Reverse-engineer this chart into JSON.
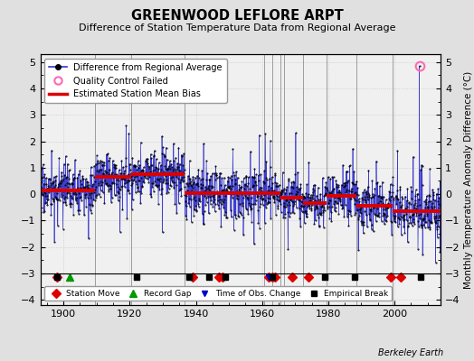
{
  "title": "GREENWOOD LEFLORE ARPT",
  "subtitle": "Difference of Station Temperature Data from Regional Average",
  "ylabel": "Monthly Temperature Anomaly Difference (°C)",
  "xlim": [
    1893,
    2014
  ],
  "ylim": [
    -4.2,
    5.3
  ],
  "yticks": [
    -4,
    -3,
    -2,
    -1,
    0,
    1,
    2,
    3,
    4,
    5
  ],
  "xticks": [
    1900,
    1920,
    1940,
    1960,
    1980,
    2000
  ],
  "background_color": "#e0e0e0",
  "plot_bg_color": "#f0f0f0",
  "line_color": "#3333cc",
  "bias_color": "#dd0000",
  "qc_color": "#ff69b4",
  "grid_color": "#bbbbbb",
  "bias_segments": [
    {
      "x": [
        1893,
        1909.5
      ],
      "y": [
        0.15,
        0.15
      ]
    },
    {
      "x": [
        1909.5,
        1920.5
      ],
      "y": [
        0.65,
        0.65
      ]
    },
    {
      "x": [
        1920.5,
        1936.5
      ],
      "y": [
        0.75,
        0.75
      ]
    },
    {
      "x": [
        1936.5,
        1960.5
      ],
      "y": [
        0.05,
        0.05
      ]
    },
    {
      "x": [
        1960.5,
        1965.5
      ],
      "y": [
        0.05,
        0.05
      ]
    },
    {
      "x": [
        1965.5,
        1972.5
      ],
      "y": [
        -0.15,
        -0.15
      ]
    },
    {
      "x": [
        1972.5,
        1979.5
      ],
      "y": [
        -0.35,
        -0.35
      ]
    },
    {
      "x": [
        1979.5,
        1988.5
      ],
      "y": [
        -0.05,
        -0.05
      ]
    },
    {
      "x": [
        1988.5,
        1999.5
      ],
      "y": [
        -0.45,
        -0.45
      ]
    },
    {
      "x": [
        1999.5,
        2014
      ],
      "y": [
        -0.65,
        -0.65
      ]
    }
  ],
  "vlines": [
    1909.5,
    1920.5,
    1936.5,
    1960.5,
    1963,
    1965.5,
    1966.5,
    1972.5,
    1979.5,
    1988.5,
    1999.5
  ],
  "station_moves": [
    1898,
    1939,
    1947,
    1948,
    1962,
    1963,
    1964,
    1969,
    1974,
    1999,
    2002
  ],
  "record_gaps": [
    1902
  ],
  "obs_changes": [
    1962
  ],
  "empirical_breaks": [
    1898,
    1922,
    1938,
    1944,
    1949,
    1963,
    1979,
    1988,
    2008
  ],
  "qc_fail_year": 2007.5,
  "qc_fail_val": 4.85,
  "seed": 17,
  "watermark": "Berkeley Earth",
  "marker_y": -3.15
}
